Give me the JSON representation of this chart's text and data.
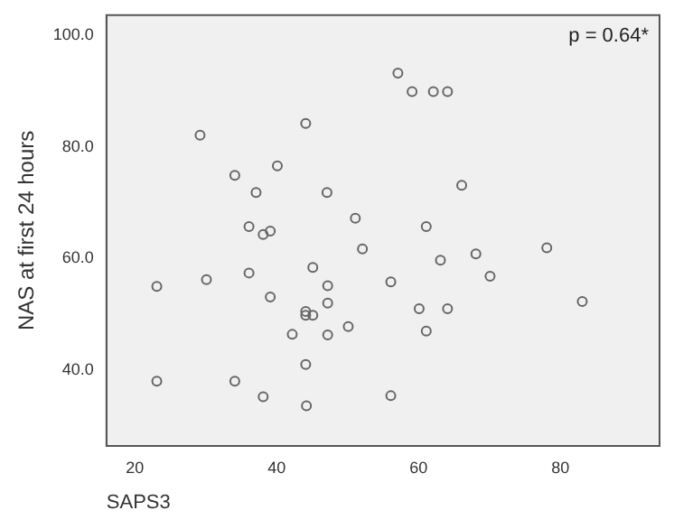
{
  "chart_data": {
    "type": "scatter",
    "xlabel": "SAPS3",
    "ylabel": "NAS at first 24 hours",
    "annotations": [
      "p = 0.64*"
    ],
    "x": [
      29.2,
      34.1,
      37.1,
      36.1,
      38.1,
      39.1,
      40.1,
      44.1,
      47.1,
      51.1,
      52.1,
      57.1,
      59.1,
      62.1,
      64.1,
      66.1,
      61.1,
      68.1,
      78.1,
      23.1,
      30.1,
      36.1,
      39.1,
      45.1,
      47.2,
      47.2,
      44.1,
      44.1,
      45.1,
      42.2,
      47.2,
      50.1,
      44.1,
      23.1,
      34.1,
      38.1,
      44.2,
      63.1,
      56.1,
      70.1,
      60.1,
      64.1,
      61.1,
      83.1,
      56.1
    ],
    "series": [
      {
        "color": "#666666",
        "values": [
          82.1,
          74.9,
          71.8,
          65.7,
          64.3,
          64.9,
          76.6,
          84.2,
          71.8,
          67.2,
          61.7,
          93.2,
          89.9,
          89.9,
          89.9,
          73.1,
          65.7,
          60.8,
          61.9,
          55.0,
          56.2,
          57.4,
          53.1,
          58.4,
          55.1,
          52.0,
          50.5,
          49.8,
          49.8,
          46.4,
          46.3,
          47.8,
          41.0,
          38.0,
          38.0,
          35.2,
          33.6,
          59.7,
          55.8,
          56.8,
          51.0,
          51.0,
          47.0,
          52.3,
          35.4
        ]
      }
    ],
    "xlim": [
      16,
      94
    ],
    "xticks": [
      20,
      40,
      60,
      80
    ],
    "ylim": [
      26.4,
      103.6
    ],
    "yticks": [
      {
        "value": 40,
        "label": "40.0"
      },
      {
        "value": 60,
        "label": "60.0"
      },
      {
        "value": 80,
        "label": "80.0"
      },
      {
        "value": 100,
        "label": "100.0"
      }
    ],
    "grid": false,
    "legend": false,
    "marker": "circle"
  }
}
